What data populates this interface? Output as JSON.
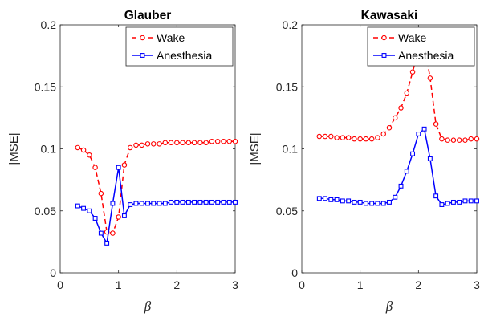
{
  "chart_data": [
    {
      "type": "line",
      "title": "Glauber",
      "xlabel": "β",
      "ylabel": "|MSE|",
      "xlim": [
        0,
        3
      ],
      "ylim": [
        0,
        0.2
      ],
      "xticks": [
        "0",
        "1",
        "2",
        "3"
      ],
      "yticks": [
        "0",
        "0.05",
        "0.1",
        "0.15",
        "0.2"
      ],
      "legend_position": "top-right",
      "series": [
        {
          "name": "Wake",
          "color": "#ff0000",
          "line": "dashed",
          "marker": "circle",
          "x": [
            0.3,
            0.4,
            0.5,
            0.6,
            0.7,
            0.8,
            0.9,
            1.0,
            1.1,
            1.2,
            1.3,
            1.4,
            1.5,
            1.6,
            1.7,
            1.8,
            1.9,
            2.0,
            2.1,
            2.2,
            2.3,
            2.4,
            2.5,
            2.6,
            2.7,
            2.8,
            2.9,
            3.0
          ],
          "values": [
            0.101,
            0.099,
            0.095,
            0.085,
            0.064,
            0.033,
            0.032,
            0.045,
            0.087,
            0.101,
            0.103,
            0.103,
            0.104,
            0.104,
            0.104,
            0.105,
            0.105,
            0.105,
            0.105,
            0.105,
            0.105,
            0.105,
            0.105,
            0.106,
            0.106,
            0.106,
            0.106,
            0.106
          ]
        },
        {
          "name": "Anesthesia",
          "color": "#0000ff",
          "line": "solid",
          "marker": "square",
          "x": [
            0.3,
            0.4,
            0.5,
            0.6,
            0.7,
            0.8,
            0.9,
            1.0,
            1.1,
            1.2,
            1.3,
            1.4,
            1.5,
            1.6,
            1.7,
            1.8,
            1.9,
            2.0,
            2.1,
            2.2,
            2.3,
            2.4,
            2.5,
            2.6,
            2.7,
            2.8,
            2.9,
            3.0
          ],
          "values": [
            0.054,
            0.052,
            0.05,
            0.044,
            0.032,
            0.024,
            0.056,
            0.085,
            0.046,
            0.055,
            0.056,
            0.056,
            0.056,
            0.056,
            0.056,
            0.056,
            0.057,
            0.057,
            0.057,
            0.057,
            0.057,
            0.057,
            0.057,
            0.057,
            0.057,
            0.057,
            0.057,
            0.057
          ]
        }
      ]
    },
    {
      "type": "line",
      "title": "Kawasaki",
      "xlabel": "β",
      "ylabel": "|MSE|",
      "xlim": [
        0,
        3
      ],
      "ylim": [
        0,
        0.2
      ],
      "xticks": [
        "0",
        "1",
        "2",
        "3"
      ],
      "yticks": [
        "0",
        "0.05",
        "0.1",
        "0.15",
        "0.2"
      ],
      "legend_position": "top-right",
      "series": [
        {
          "name": "Wake",
          "color": "#ff0000",
          "line": "dashed",
          "marker": "circle",
          "x": [
            0.3,
            0.4,
            0.5,
            0.6,
            0.7,
            0.8,
            0.9,
            1.0,
            1.1,
            1.2,
            1.3,
            1.4,
            1.5,
            1.6,
            1.7,
            1.8,
            1.9,
            2.0,
            2.1,
            2.2,
            2.3,
            2.4,
            2.5,
            2.6,
            2.7,
            2.8,
            2.9,
            3.0
          ],
          "values": [
            0.11,
            0.11,
            0.11,
            0.109,
            0.109,
            0.109,
            0.108,
            0.108,
            0.108,
            0.108,
            0.109,
            0.112,
            0.117,
            0.125,
            0.133,
            0.145,
            0.162,
            0.18,
            0.185,
            0.157,
            0.12,
            0.108,
            0.107,
            0.107,
            0.107,
            0.107,
            0.108,
            0.108
          ]
        },
        {
          "name": "Anesthesia",
          "color": "#0000ff",
          "line": "solid",
          "marker": "square",
          "x": [
            0.3,
            0.4,
            0.5,
            0.6,
            0.7,
            0.8,
            0.9,
            1.0,
            1.1,
            1.2,
            1.3,
            1.4,
            1.5,
            1.6,
            1.7,
            1.8,
            1.9,
            2.0,
            2.1,
            2.2,
            2.3,
            2.4,
            2.5,
            2.6,
            2.7,
            2.8,
            2.9,
            3.0
          ],
          "values": [
            0.06,
            0.06,
            0.059,
            0.059,
            0.058,
            0.058,
            0.057,
            0.057,
            0.056,
            0.056,
            0.056,
            0.056,
            0.057,
            0.061,
            0.07,
            0.082,
            0.096,
            0.112,
            0.116,
            0.092,
            0.062,
            0.055,
            0.056,
            0.057,
            0.057,
            0.058,
            0.058,
            0.058
          ]
        }
      ]
    }
  ]
}
